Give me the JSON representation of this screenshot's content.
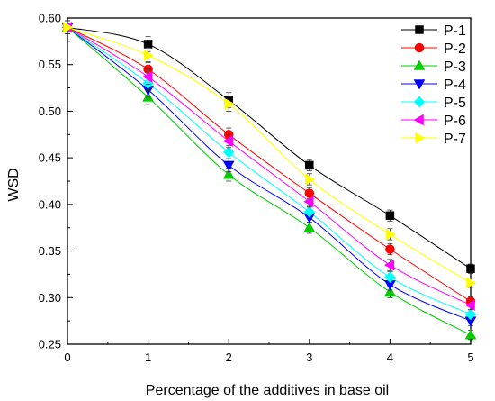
{
  "chart_data": {
    "type": "line",
    "xlabel": "Percentage of the additives in base oil",
    "ylabel": "WSD",
    "xlim": [
      0,
      5
    ],
    "ylim": [
      0.25,
      0.6
    ],
    "x_ticks": [
      0,
      1,
      2,
      3,
      4,
      5
    ],
    "y_ticks": [
      0.25,
      0.3,
      0.35,
      0.4,
      0.45,
      0.5,
      0.55,
      0.6
    ],
    "x_tick_labels": [
      "0",
      "1",
      "2",
      "3",
      "4",
      "5"
    ],
    "y_tick_labels": [
      "0.25",
      "0.30",
      "0.35",
      "0.40",
      "0.45",
      "0.50",
      "0.55",
      "0.60"
    ],
    "grid": false,
    "legend_position": "top-right",
    "x": [
      0,
      1,
      2,
      3,
      4,
      5
    ],
    "series": [
      {
        "name": "P-1",
        "color": "#000000",
        "marker": "square",
        "values": [
          0.59,
          0.572,
          0.512,
          0.442,
          0.388,
          0.331
        ],
        "err": [
          0.007,
          0.008,
          0.008,
          0.006,
          0.006,
          0.005
        ]
      },
      {
        "name": "P-2",
        "color": "#ff0000",
        "marker": "circle",
        "values": [
          0.59,
          0.545,
          0.475,
          0.412,
          0.352,
          0.296
        ],
        "err": [
          0.007,
          0.008,
          0.007,
          0.006,
          0.006,
          0.005
        ]
      },
      {
        "name": "P-3",
        "color": "#00cc00",
        "marker": "triangle-up",
        "values": [
          0.59,
          0.515,
          0.432,
          0.375,
          0.306,
          0.26
        ],
        "err": [
          0.007,
          0.008,
          0.007,
          0.006,
          0.006,
          0.005
        ]
      },
      {
        "name": "P-4",
        "color": "#0000ff",
        "marker": "triangle-down",
        "values": [
          0.59,
          0.523,
          0.442,
          0.386,
          0.314,
          0.275
        ],
        "err": [
          0.007,
          0.008,
          0.007,
          0.006,
          0.006,
          0.005
        ]
      },
      {
        "name": "P-5",
        "color": "#00ffff",
        "marker": "diamond",
        "values": [
          0.59,
          0.53,
          0.456,
          0.392,
          0.322,
          0.282
        ],
        "err": [
          0.007,
          0.008,
          0.007,
          0.006,
          0.006,
          0.005
        ]
      },
      {
        "name": "P-6",
        "color": "#ff00ff",
        "marker": "triangle-left",
        "values": [
          0.59,
          0.537,
          0.468,
          0.403,
          0.335,
          0.292
        ],
        "err": [
          0.007,
          0.008,
          0.007,
          0.006,
          0.006,
          0.005
        ]
      },
      {
        "name": "P-7",
        "color": "#ffff00",
        "marker": "triangle-right",
        "values": [
          0.59,
          0.56,
          0.508,
          0.427,
          0.368,
          0.316
        ],
        "err": [
          0.007,
          0.008,
          0.008,
          0.006,
          0.006,
          0.005
        ]
      }
    ]
  }
}
